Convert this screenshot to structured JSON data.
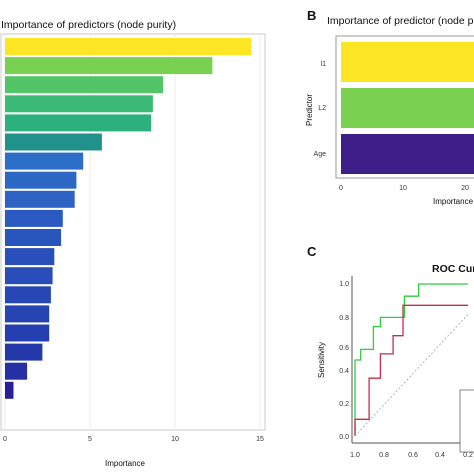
{
  "panels": {
    "A": {
      "letter": "",
      "title": "Importance of predictors (node purity)",
      "xlabel": "Importance",
      "xticks": [
        "0",
        "5",
        "10",
        "15"
      ]
    },
    "B": {
      "letter": "B",
      "title": "Importance of predictor (node purity)",
      "xlabel": "Importance",
      "ylabel": "Predictor",
      "xticks": [
        "0",
        "10",
        "20"
      ],
      "yticks": [
        "l1",
        "L2",
        "Age"
      ]
    },
    "C": {
      "letter": "C",
      "title": "ROC Curve",
      "ylabel": "Sensitivity",
      "xticks": [
        "1.0",
        "0.8",
        "0.6",
        "0.4",
        "0.2"
      ],
      "yticks": [
        "0.0",
        "0.2",
        "0.4",
        "0.6",
        "0.8",
        "1.0"
      ]
    }
  },
  "chart_data": [
    {
      "type": "bar",
      "orientation": "horizontal",
      "title": "Importance of predictors (node purity)",
      "xlabel": "Importance",
      "xlim": [
        0,
        15
      ],
      "values": [
        14.5,
        12.2,
        9.3,
        8.7,
        8.6,
        5.7,
        4.6,
        4.2,
        4.1,
        3.4,
        3.3,
        2.9,
        2.8,
        2.7,
        2.6,
        2.6,
        2.2,
        1.3,
        0.5
      ],
      "colors": [
        "#FDE725",
        "#7AD151",
        "#52C569",
        "#3BBB75",
        "#2CB17E",
        "#21918C",
        "#2C6EC8",
        "#2D69C4",
        "#2D62C2",
        "#2B5BC0",
        "#2956BD",
        "#2950BA",
        "#284CB8",
        "#2747B5",
        "#2643B2",
        "#263FB0",
        "#2538AA",
        "#2530A5",
        "#2A1F9A"
      ]
    },
    {
      "type": "bar",
      "orientation": "horizontal",
      "title": "Importance of predictor (node purity)",
      "xlabel": "Importance",
      "ylabel": "Predictor",
      "categories": [
        "l1",
        "L2",
        "Age"
      ],
      "values": [
        26,
        26,
        26
      ],
      "xlim": [
        0,
        20
      ],
      "colors": [
        "#FDE725",
        "#7AD151",
        "#3E1F8A"
      ]
    },
    {
      "type": "line",
      "title": "ROC Curve",
      "ylabel": "Sensitivity",
      "xlim": [
        1.0,
        0.2
      ],
      "ylim": [
        0.0,
        1.0
      ],
      "series": [
        {
          "color": "#2ECC40",
          "x": [
            1.0,
            1.0,
            0.96,
            0.96,
            0.87,
            0.87,
            0.82,
            0.82,
            0.78,
            0.78,
            0.65,
            0.65,
            0.55,
            0.55,
            0.2
          ],
          "y": [
            0.0,
            0.5,
            0.5,
            0.57,
            0.57,
            0.72,
            0.72,
            0.78,
            0.78,
            0.78,
            0.78,
            0.92,
            0.92,
            1.0,
            1.0
          ]
        },
        {
          "color": "#C0304A",
          "x": [
            1.0,
            1.0,
            0.9,
            0.9,
            0.82,
            0.82,
            0.73,
            0.73,
            0.66,
            0.66,
            0.55,
            0.55,
            0.2
          ],
          "y": [
            0.0,
            0.11,
            0.11,
            0.38,
            0.38,
            0.54,
            0.54,
            0.66,
            0.66,
            0.86,
            0.86,
            0.86,
            0.86
          ]
        },
        {
          "color": "#9AA4AE",
          "dashed": true,
          "x": [
            1.0,
            0.2
          ],
          "y": [
            0.0,
            0.8
          ]
        }
      ]
    }
  ]
}
